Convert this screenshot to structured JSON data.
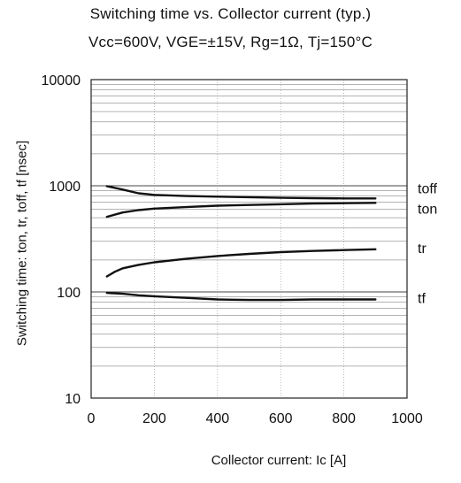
{
  "chart_data": {
    "type": "line",
    "title": "Switching time  vs.  Collector current  (typ.)",
    "subtitle": "Vcc=600V, VGE=±15V, Rg=1Ω, Tj=150°C",
    "xlabel": "Collector current: Ic [A]",
    "ylabel": "Switching time: ton, tr, toff, tf [nsec]",
    "xlim": [
      0,
      1000
    ],
    "ylim": [
      10,
      10000
    ],
    "yscale": "log",
    "grid": true,
    "x_ticks": [
      "0",
      "200",
      "400",
      "600",
      "800",
      "1000"
    ],
    "y_ticks": [
      "10",
      "100",
      "1000",
      "10000"
    ],
    "series": [
      {
        "name": "toff",
        "x": [
          50,
          100,
          150,
          200,
          300,
          400,
          500,
          600,
          700,
          800,
          900
        ],
        "values": [
          990,
          920,
          850,
          820,
          800,
          790,
          780,
          770,
          765,
          760,
          760
        ]
      },
      {
        "name": "ton",
        "x": [
          50,
          100,
          150,
          200,
          300,
          400,
          500,
          600,
          700,
          800,
          900
        ],
        "values": [
          510,
          560,
          590,
          610,
          630,
          650,
          660,
          670,
          680,
          685,
          690
        ]
      },
      {
        "name": "tr",
        "x": [
          50,
          75,
          100,
          150,
          200,
          300,
          400,
          500,
          600,
          700,
          800,
          900
        ],
        "values": [
          140,
          155,
          167,
          180,
          190,
          205,
          218,
          228,
          237,
          243,
          248,
          252
        ]
      },
      {
        "name": "tf",
        "x": [
          50,
          100,
          150,
          200,
          300,
          400,
          500,
          600,
          700,
          800,
          900
        ],
        "values": [
          98,
          96,
          93,
          91,
          88,
          85,
          84,
          84,
          85,
          85,
          85
        ]
      }
    ]
  }
}
